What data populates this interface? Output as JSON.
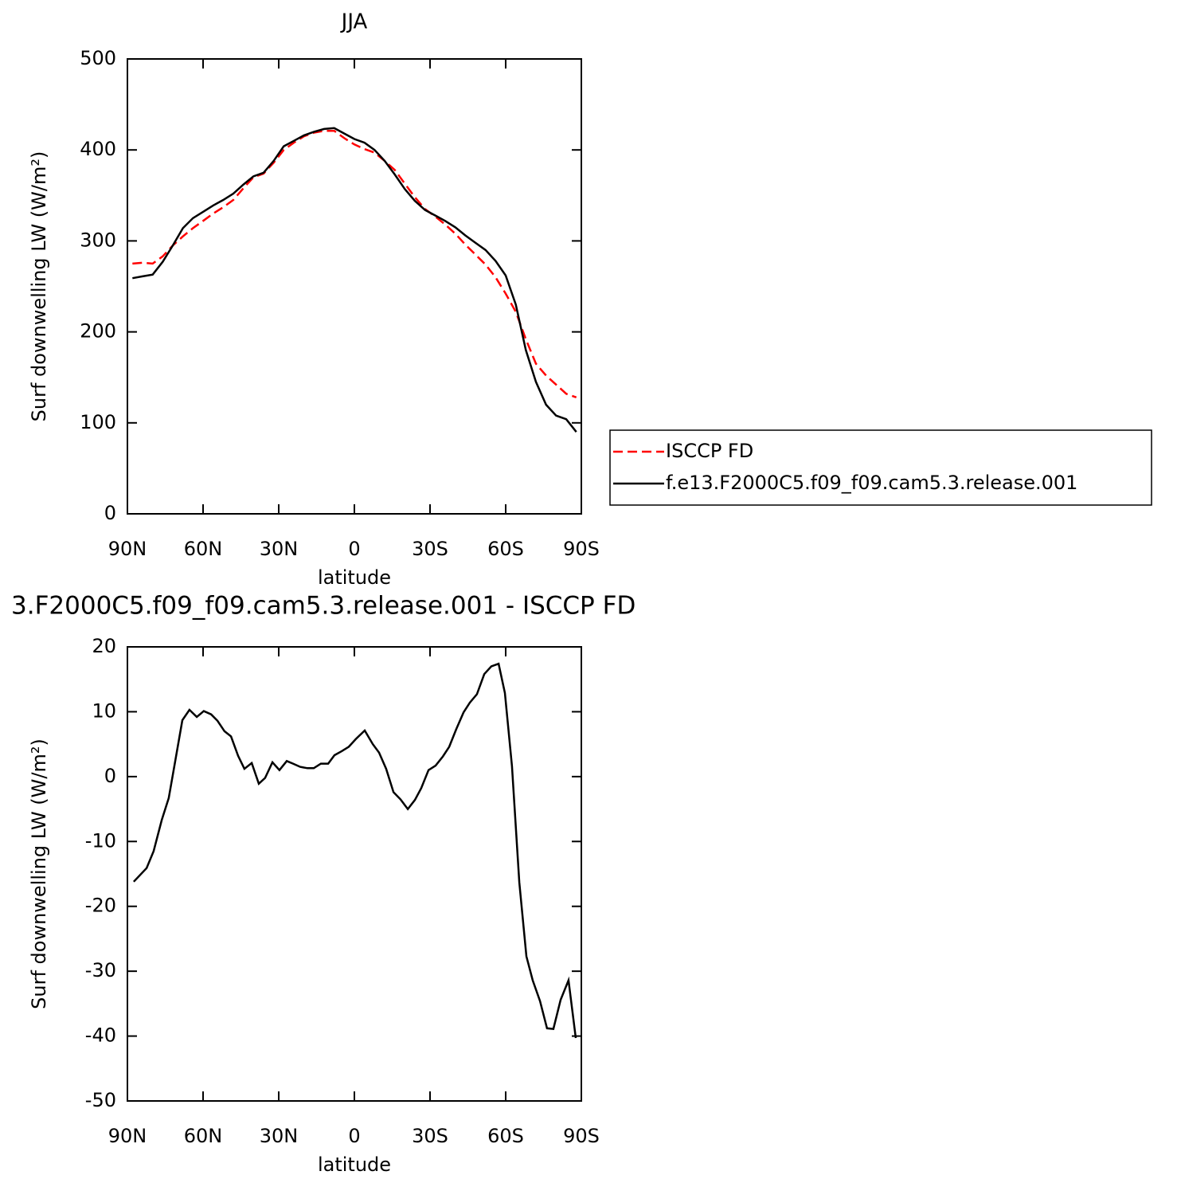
{
  "chart_data": [
    {
      "type": "line",
      "title": "JJA",
      "xlabel": "latitude",
      "ylabel": "Surf downwelling LW (W/m²)",
      "xlim": [
        90,
        -90
      ],
      "xticks": [
        {
          "value": 90,
          "label": "90N"
        },
        {
          "value": 60,
          "label": "60N"
        },
        {
          "value": 30,
          "label": "30N"
        },
        0,
        {
          "value": -30,
          "label": "30S"
        },
        {
          "value": -60,
          "label": "60S"
        },
        {
          "value": -90,
          "label": "90S"
        }
      ],
      "ylim": [
        0,
        500
      ],
      "yticks": [
        0,
        100,
        200,
        300,
        400,
        500
      ],
      "legend": "right",
      "x": [
        88,
        84,
        80,
        76,
        72,
        68,
        64,
        60,
        56,
        52,
        48,
        44,
        40,
        36,
        32,
        28,
        24,
        20,
        16,
        12,
        8,
        4,
        0,
        -4,
        -8,
        -12,
        -16,
        -20,
        -24,
        -28,
        -32,
        -36,
        -40,
        -44,
        -48,
        -52,
        -56,
        -60,
        -64,
        -68,
        -72,
        -76,
        -80,
        -84,
        -88
      ],
      "series": [
        {
          "name": "ISCCP FD",
          "color": "#ff0000",
          "dashed": true,
          "values": [
            275,
            276,
            275,
            283,
            295,
            305,
            314,
            322,
            330,
            337,
            345,
            358,
            370,
            374,
            386,
            400,
            408,
            415,
            419,
            421,
            421,
            413,
            406,
            401,
            397,
            388,
            378,
            363,
            348,
            335,
            327,
            318,
            308,
            296,
            285,
            274,
            260,
            242,
            222,
            192,
            165,
            152,
            142,
            132,
            128
          ]
        },
        {
          "name": "f.e13.F2000C5.f09_f09.cam5.3.release.001",
          "color": "#000000",
          "dashed": false,
          "values": [
            259,
            261,
            263,
            277,
            295,
            314,
            325,
            332,
            339,
            345,
            352,
            362,
            371,
            375,
            388,
            404,
            410,
            416,
            420,
            423,
            424,
            418,
            412,
            408,
            400,
            388,
            373,
            357,
            344,
            334,
            328,
            322,
            315,
            306,
            298,
            290,
            278,
            262,
            230,
            180,
            145,
            120,
            108,
            104,
            90
          ]
        }
      ]
    },
    {
      "type": "line",
      "title": "3.F2000C5.f09_f09.cam5.3.release.001 - ISCCP FD",
      "xlabel": "latitude",
      "ylabel": "Surf downwelling LW (W/m²)",
      "xlim": [
        90,
        -90
      ],
      "xticks": [
        {
          "value": 90,
          "label": "90N"
        },
        {
          "value": 60,
          "label": "60N"
        },
        {
          "value": 30,
          "label": "30N"
        },
        0,
        {
          "value": -30,
          "label": "30S"
        },
        {
          "value": -60,
          "label": "60S"
        },
        {
          "value": -90,
          "label": "90S"
        }
      ],
      "ylim": [
        -50,
        20
      ],
      "yticks": [
        -50,
        -40,
        -30,
        -20,
        -10,
        0,
        10,
        20
      ],
      "x": [
        87.5,
        82.4,
        79.6,
        76.4,
        73.6,
        71.1,
        68.2,
        65.4,
        62.5,
        59.7,
        56.8,
        54.3,
        51.5,
        48.9,
        46.1,
        43.6,
        40.7,
        37.9,
        35.4,
        32.5,
        29.7,
        26.8,
        24.3,
        21.5,
        18.6,
        16.1,
        13.3,
        10.4,
        7.9,
        5.1,
        2.2,
        -0.6,
        -4.1,
        -7.3,
        -9.8,
        -12.6,
        -15.5,
        -18.3,
        -21.2,
        -24.0,
        -26.5,
        -29.4,
        -32.2,
        -35.1,
        -37.6,
        -40.4,
        -43.3,
        -45.8,
        -48.6,
        -51.5,
        -54.3,
        -57.2,
        -59.7,
        -62.5,
        -65.4,
        -68.2,
        -70.7,
        -73.6,
        -76.4,
        -78.9,
        -81.8,
        -84.9,
        -87.8
      ],
      "series": [
        {
          "color": "#000000",
          "dashed": false,
          "values": [
            -16.2,
            -14.1,
            -11.5,
            -6.7,
            -3.3,
            2.3,
            8.7,
            10.3,
            9.2,
            10.1,
            9.6,
            8.6,
            7.0,
            6.2,
            3.2,
            1.2,
            2.1,
            -1.1,
            -0.2,
            2.2,
            1.0,
            2.4,
            2.0,
            1.5,
            1.3,
            1.3,
            2.0,
            2.0,
            3.3,
            3.9,
            4.6,
            5.8,
            7.1,
            5.0,
            3.7,
            1.2,
            -2.4,
            -3.5,
            -5.0,
            -3.6,
            -1.8,
            1.0,
            1.7,
            3.1,
            4.6,
            7.3,
            9.9,
            11.4,
            12.7,
            15.8,
            17.0,
            17.4,
            12.9,
            1.6,
            -16.3,
            -27.7,
            -31.4,
            -34.6,
            -38.8,
            -38.9,
            -34.4,
            -31.4,
            -40.3
          ]
        }
      ]
    }
  ]
}
